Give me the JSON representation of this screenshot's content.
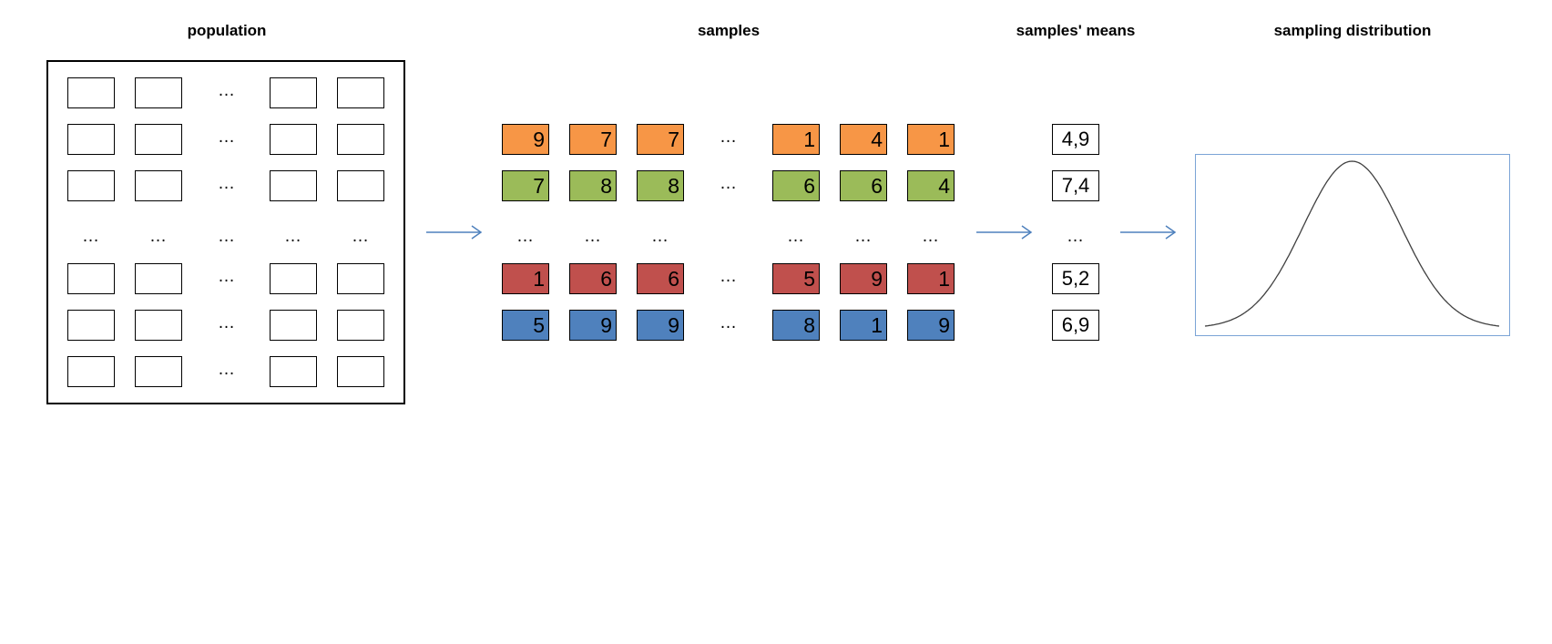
{
  "headings": {
    "population": "population",
    "samples": "samples",
    "means": "samples' means",
    "distribution": "sampling distribution"
  },
  "ellipsis": "…",
  "samples": [
    {
      "color": "#f79646",
      "values": [
        "9",
        "7",
        "7",
        "1",
        "4",
        "1"
      ]
    },
    {
      "color": "#9bbb59",
      "values": [
        "7",
        "8",
        "8",
        "6",
        "6",
        "4"
      ]
    },
    {
      "color": "#c0504d",
      "values": [
        "1",
        "6",
        "6",
        "5",
        "9",
        "1"
      ]
    },
    {
      "color": "#4f81bd",
      "values": [
        "5",
        "9",
        "9",
        "8",
        "1",
        "9"
      ]
    }
  ],
  "means": [
    "4,9",
    "7,4",
    "5,2",
    "6,9"
  ],
  "colors": {
    "arrow": "#4f81bd",
    "distribution_frame": "#7ba4d6",
    "curve": "#404040"
  }
}
